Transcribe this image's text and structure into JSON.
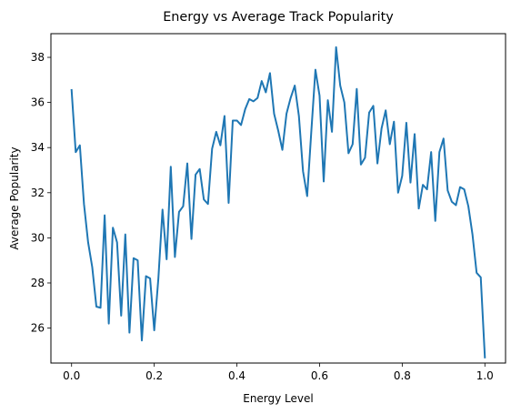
{
  "chart_data": {
    "type": "line",
    "title": "Energy vs Average Track Popularity",
    "xlabel": "Energy Level",
    "ylabel": "Average Popularity",
    "xlim": [
      -0.05,
      1.05
    ],
    "ylim": [
      24.45,
      39.05
    ],
    "xticks": [
      0.0,
      0.2,
      0.4,
      0.6,
      0.8,
      1.0
    ],
    "xtick_labels": [
      "0.0",
      "0.2",
      "0.4",
      "0.6",
      "0.8",
      "1.0"
    ],
    "yticks": [
      26,
      28,
      30,
      32,
      34,
      36,
      38
    ],
    "ytick_labels": [
      "26",
      "28",
      "30",
      "32",
      "34",
      "36",
      "38"
    ],
    "grid": false,
    "legend": "none",
    "series": [
      {
        "color": "#1f77b4",
        "x": [
          0.0,
          0.01,
          0.02,
          0.03,
          0.04,
          0.05,
          0.06,
          0.07,
          0.08,
          0.09,
          0.1,
          0.11,
          0.12,
          0.13,
          0.14,
          0.15,
          0.16,
          0.17,
          0.18,
          0.19,
          0.2,
          0.21,
          0.22,
          0.23,
          0.24,
          0.25,
          0.26,
          0.27,
          0.28,
          0.29,
          0.3,
          0.31,
          0.32,
          0.33,
          0.34,
          0.35,
          0.36,
          0.37,
          0.38,
          0.39,
          0.4,
          0.41,
          0.42,
          0.43,
          0.44,
          0.45,
          0.46,
          0.47,
          0.48,
          0.49,
          0.5,
          0.51,
          0.52,
          0.53,
          0.54,
          0.55,
          0.56,
          0.57,
          0.58,
          0.59,
          0.6,
          0.61,
          0.62,
          0.63,
          0.64,
          0.65,
          0.66,
          0.67,
          0.68,
          0.69,
          0.7,
          0.71,
          0.72,
          0.73,
          0.74,
          0.75,
          0.76,
          0.77,
          0.78,
          0.79,
          0.8,
          0.81,
          0.82,
          0.83,
          0.84,
          0.85,
          0.86,
          0.87,
          0.88,
          0.89,
          0.9,
          0.91,
          0.92,
          0.93,
          0.94,
          0.95,
          0.96,
          0.97,
          0.98,
          0.99,
          1.0
        ],
        "y": [
          36.55,
          33.8,
          34.1,
          31.5,
          29.8,
          28.7,
          26.95,
          26.9,
          31.0,
          26.2,
          30.45,
          29.8,
          26.55,
          30.15,
          25.8,
          29.1,
          29.0,
          25.45,
          28.3,
          28.2,
          25.9,
          28.2,
          31.25,
          29.05,
          33.15,
          29.15,
          31.15,
          31.4,
          33.3,
          29.95,
          32.8,
          33.05,
          31.7,
          31.5,
          33.95,
          34.7,
          34.1,
          35.4,
          31.55,
          35.2,
          35.2,
          35.0,
          35.7,
          36.15,
          36.05,
          36.2,
          36.95,
          36.45,
          37.3,
          35.5,
          34.75,
          33.9,
          35.5,
          36.2,
          36.75,
          35.4,
          32.95,
          31.85,
          34.7,
          37.45,
          36.3,
          32.5,
          36.1,
          34.7,
          38.45,
          36.75,
          36.0,
          33.75,
          34.15,
          36.6,
          33.25,
          33.55,
          35.55,
          35.85,
          33.3,
          34.85,
          35.65,
          34.15,
          35.15,
          32.0,
          32.75,
          35.1,
          32.45,
          34.6,
          31.3,
          32.35,
          32.15,
          33.8,
          30.75,
          33.8,
          34.4,
          32.1,
          31.6,
          31.45,
          32.25,
          32.15,
          31.4,
          30.15,
          28.45,
          28.25,
          24.7
        ]
      }
    ]
  }
}
